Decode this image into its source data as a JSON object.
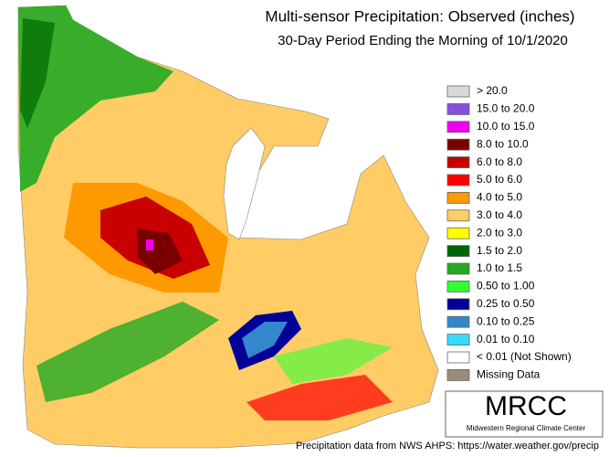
{
  "header": {
    "title": "Multi-sensor Precipitation: Observed (inches)",
    "subtitle": "30-Day Period Ending the Morning of 10/1/2020"
  },
  "legend": [
    {
      "label": "> 20.0",
      "color": "#d9d9d9"
    },
    {
      "label": "15.0 to 20.0",
      "color": "#8a4fe0"
    },
    {
      "label": "10.0 to 15.0",
      "color": "#f000f0"
    },
    {
      "label": "8.0 to 10.0",
      "color": "#7a0000"
    },
    {
      "label": "6.0 to 8.0",
      "color": "#c80000"
    },
    {
      "label": "5.0 to 6.0",
      "color": "#ff0000"
    },
    {
      "label": "4.0 to 5.0",
      "color": "#ff9900"
    },
    {
      "label": "3.0 to 4.0",
      "color": "#ffcc66"
    },
    {
      "label": "2.0 to 3.0",
      "color": "#ffff00"
    },
    {
      "label": "1.5 to 2.0",
      "color": "#006600"
    },
    {
      "label": "1.0 to 1.5",
      "color": "#22aa22"
    },
    {
      "label": "0.50 to 1.00",
      "color": "#33ff33"
    },
    {
      "label": "0.25 to 0.50",
      "color": "#000099"
    },
    {
      "label": "0.10 to 0.25",
      "color": "#3388cc"
    },
    {
      "label": "0.01 to 0.10",
      "color": "#33ddff"
    },
    {
      "label": "< 0.01 (Not Shown)",
      "color": "#ffffff"
    },
    {
      "label": "Missing Data",
      "color": "#9b8b7b"
    }
  ],
  "logo": {
    "name": "MRCC",
    "subtitle": "Midwestern Regional Climate Center"
  },
  "footer": "Precipitation data from NWS AHPS: https://water.weather.gov/precip"
}
